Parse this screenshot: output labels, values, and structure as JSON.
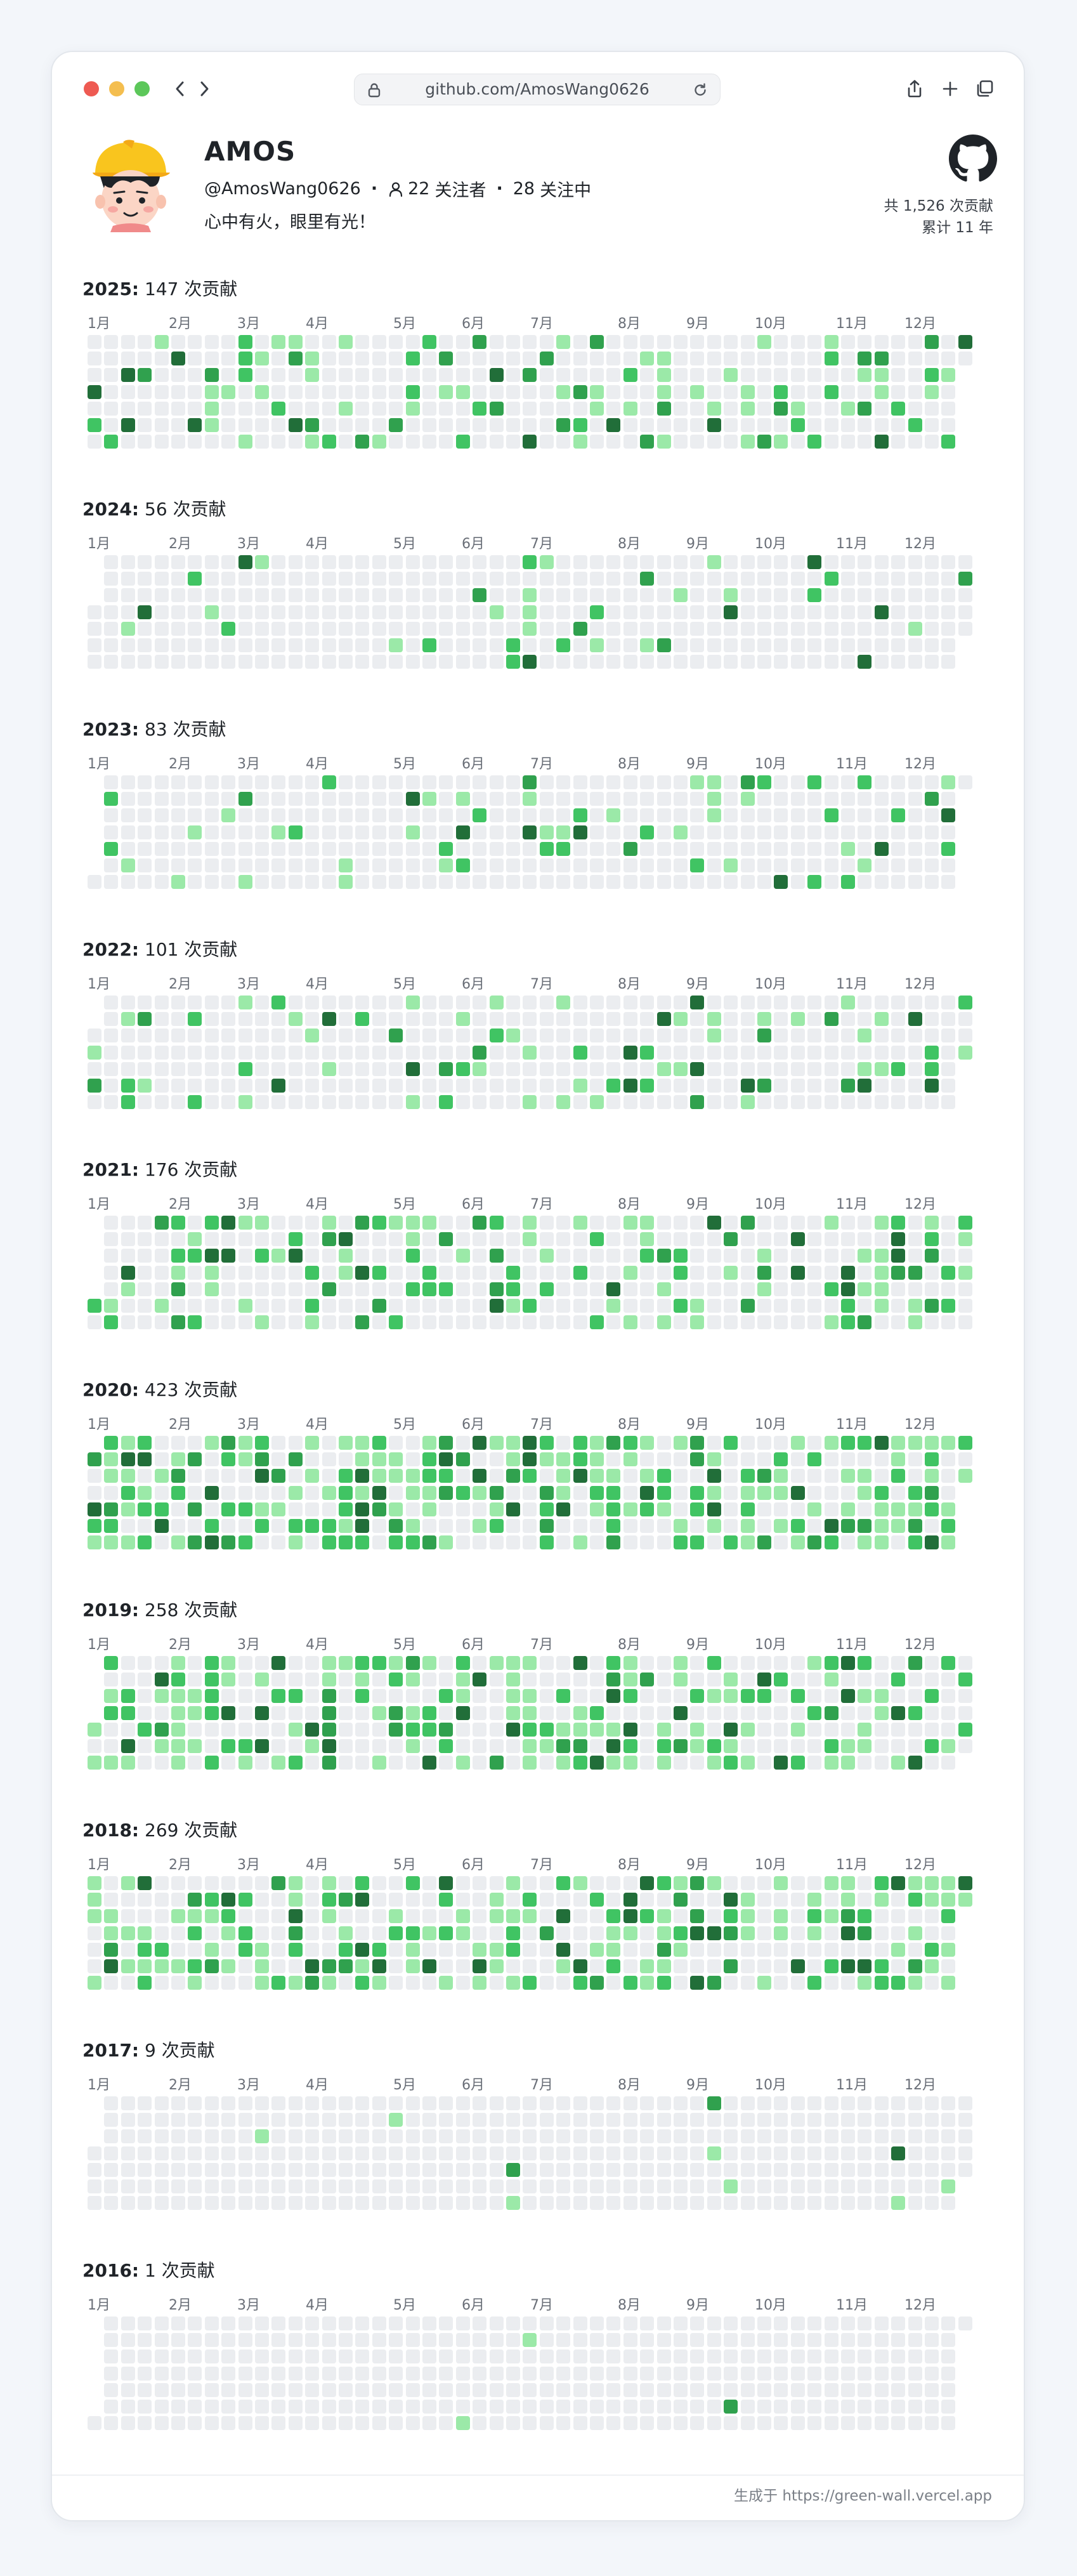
{
  "browser": {
    "url": "github.com/AmosWang0626",
    "traffic_light_colors": [
      "#ee5a52",
      "#f4be4f",
      "#5cc75a"
    ]
  },
  "profile": {
    "name": "AMOS",
    "username": "@AmosWang0626",
    "followers_count": "22",
    "followers_label": "关注者",
    "following_count": "28",
    "following_label": "关注中",
    "bio": "心中有火，眼里有光！",
    "total_contributions": "共 1,526 次贡献",
    "years_active": "累计 11 年"
  },
  "colors": {
    "empty": "#ebedf0",
    "level1": "#9be9a8",
    "level2": "#40c463",
    "level3": "#30a14e",
    "level4": "#216e39"
  },
  "months": [
    "1月",
    "2月",
    "3月",
    "4月",
    "5月",
    "6月",
    "7月",
    "8月",
    "9月",
    "10月",
    "11月",
    "12月"
  ],
  "unit_label": "次贡献",
  "years": [
    {
      "year": "2025:",
      "count": "147"
    },
    {
      "year": "2024:",
      "count": "56"
    },
    {
      "year": "2023:",
      "count": "83"
    },
    {
      "year": "2022:",
      "count": "101"
    },
    {
      "year": "2021:",
      "count": "176"
    },
    {
      "year": "2020:",
      "count": "423"
    },
    {
      "year": "2019:",
      "count": "258"
    },
    {
      "year": "2018:",
      "count": "269"
    },
    {
      "year": "2017:",
      "count": "9"
    },
    {
      "year": "2016:",
      "count": "1"
    }
  ],
  "footer": {
    "text": "生成于 https://green-wall.vercel.app"
  }
}
